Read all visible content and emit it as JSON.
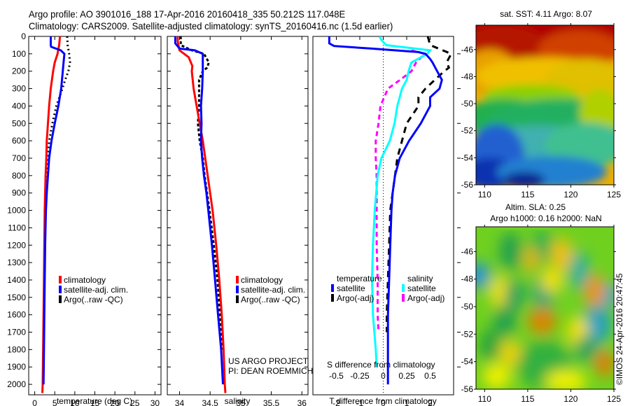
{
  "header": {
    "line1": "Argo profile: AO 3901016_188 17-Apr-2016 20160418_335 50.212S 117.048E",
    "line2": "Climatology: CARS2009. Satellite-adjusted climatology: synTS_20160416.nc (1.5d earlier)"
  },
  "colors": {
    "climatology": "#ff0000",
    "satellite": "#0000ff",
    "argo": "#000000",
    "salinity_satellite": "#00ffff",
    "salinity_argo": "#ff00ff"
  },
  "credits": {
    "project": "US ARGO PROJECT",
    "pi": "PI: DEAN ROEMMICH",
    "stamp": "©IMOS 24-Apr-2016 20:47:45"
  },
  "chart_data": [
    {
      "type": "line",
      "name": "temperature-profile",
      "xlabel": "temperature (deg C)",
      "ylabel": "",
      "xlim": [
        -1.5,
        31.5
      ],
      "ylim": [
        2060,
        0
      ],
      "xticks": [
        0,
        5,
        10,
        15,
        20,
        25,
        30
      ],
      "yticks": [
        0,
        100,
        200,
        300,
        400,
        500,
        600,
        700,
        800,
        900,
        1000,
        1100,
        1200,
        1300,
        1400,
        1500,
        1600,
        1700,
        1800,
        1900,
        2000
      ],
      "legend": [
        "climatology",
        "satellite-adj. clim.",
        "Argo(..raw -QC)"
      ],
      "legend_placement": "lower-middle",
      "series": [
        {
          "name": "climatology",
          "depth": [
            0,
            50,
            100,
            150,
            200,
            300,
            400,
            500,
            600,
            700,
            800,
            900,
            1000,
            1200,
            1400,
            1600,
            1800,
            2000,
            2050
          ],
          "values": [
            6.3,
            6.1,
            5.7,
            5.0,
            4.6,
            4.0,
            3.6,
            3.3,
            3.0,
            2.9,
            2.7,
            2.6,
            2.5,
            2.4,
            2.3,
            2.2,
            2.1,
            2.0,
            1.9
          ]
        },
        {
          "name": "satellite-adj. clim.",
          "depth": [
            0,
            50,
            60,
            80,
            100,
            150,
            200,
            300,
            400,
            500,
            600,
            700,
            800,
            900,
            1000,
            1200,
            1400,
            1600,
            1800,
            2000
          ],
          "values": [
            4.0,
            4.0,
            4.1,
            6.5,
            7.4,
            7.2,
            7.0,
            6.6,
            5.9,
            5.0,
            4.2,
            3.6,
            3.3,
            3.0,
            2.8,
            2.6,
            2.5,
            2.4,
            2.3,
            2.2
          ]
        },
        {
          "name": "Argo(..raw -QC)",
          "depth": [
            0,
            50,
            100,
            150,
            200,
            250,
            300,
            400,
            500,
            600,
            700,
            800,
            900,
            1000,
            1200,
            1400,
            1600,
            1700
          ],
          "values": [
            8.1,
            8.2,
            8.6,
            8.8,
            8.4,
            7.6,
            6.9,
            5.4,
            4.4,
            3.6,
            3.3,
            3.0,
            2.8,
            2.7,
            2.5,
            2.4,
            2.3,
            2.3
          ]
        }
      ]
    },
    {
      "type": "line",
      "name": "salinity-profile",
      "xlabel": "salinity",
      "xlim": [
        33.8,
        36.1
      ],
      "ylim": [
        2060,
        0
      ],
      "xticks": [
        34,
        34.5,
        35,
        35.5,
        36
      ],
      "xticklabels": [
        "34",
        "34.5",
        "35",
        "35.5",
        "36"
      ],
      "legend": [
        "climatology",
        "satellite-adj. clim.",
        "Argo(..raw -QC)"
      ],
      "legend_placement": "lower-right",
      "series": [
        {
          "name": "climatology",
          "depth": [
            0,
            30,
            80,
            120,
            170,
            200,
            300,
            400,
            500,
            600,
            700,
            800,
            900,
            1000,
            1200,
            1400,
            1600,
            1800,
            2000,
            2050
          ],
          "values": [
            33.97,
            33.97,
            34.0,
            34.15,
            34.21,
            34.2,
            34.23,
            34.28,
            34.33,
            34.38,
            34.42,
            34.46,
            34.5,
            34.54,
            34.6,
            34.65,
            34.69,
            34.72,
            34.74,
            34.75
          ]
        },
        {
          "name": "satellite-adj. clim.",
          "depth": [
            0,
            40,
            70,
            80,
            100,
            200,
            300,
            400,
            500,
            600,
            700,
            800,
            900,
            1000,
            1200,
            1400,
            1600,
            1800,
            2000
          ],
          "values": [
            33.93,
            33.93,
            34.0,
            34.25,
            34.38,
            34.38,
            34.37,
            34.35,
            34.36,
            34.35,
            34.37,
            34.4,
            34.44,
            34.47,
            34.53,
            34.58,
            34.63,
            34.68,
            34.71
          ]
        },
        {
          "name": "Argo(..raw -QC)",
          "depth": [
            0,
            50,
            80,
            100,
            150,
            180,
            200,
            250,
            300,
            400,
            500,
            600,
            700,
            800,
            900,
            1000,
            1200,
            1400,
            1600,
            1800
          ],
          "values": [
            34.02,
            34.02,
            34.2,
            34.4,
            34.48,
            34.45,
            34.38,
            34.32,
            34.32,
            34.32,
            34.3,
            34.33,
            34.38,
            34.41,
            34.45,
            34.49,
            34.56,
            34.62,
            34.66,
            34.7
          ]
        }
      ]
    },
    {
      "type": "line",
      "name": "difference-profile",
      "xlabel": "T difference from climatology",
      "xlabel2": "S difference from climatology",
      "xlim": [
        -3,
        3
      ],
      "ylim": [
        2060,
        0
      ],
      "xticks": [
        -2,
        -1,
        0,
        1,
        2
      ],
      "xticks2": [
        -0.5,
        -0.25,
        0,
        0.25,
        0.5
      ],
      "xticklabels2": [
        "-0.5",
        "-0.25",
        "0",
        "0.25",
        "0.5"
      ],
      "legend": {
        "temperature_heading": "temperature",
        "salinity_heading": "salinity",
        "entries": [
          "satellite",
          "Argo(-adj)",
          "satellite",
          "Argo(-adj)"
        ]
      },
      "legend_placement": "lower-middle",
      "series": [
        {
          "name": "temperature satellite",
          "depth": [
            0,
            40,
            55,
            70,
            90,
            100,
            130,
            150,
            200,
            250,
            300,
            350,
            400,
            500,
            600,
            700,
            800,
            900,
            1000,
            1200,
            1400,
            1600,
            1800,
            2000
          ],
          "values": [
            -2.3,
            -2.3,
            -2.1,
            -0.5,
            1.5,
            1.8,
            2.0,
            2.1,
            2.3,
            2.5,
            2.4,
            2.0,
            2.0,
            1.6,
            1.1,
            0.7,
            0.5,
            0.4,
            0.35,
            0.3,
            0.25,
            0.2,
            0.2,
            0.2
          ]
        },
        {
          "name": "temperature Argo(-adj)",
          "depth": [
            0,
            50,
            100,
            150,
            180,
            200,
            250,
            300,
            350,
            400,
            500,
            600,
            700,
            800,
            1000,
            1200,
            1400,
            1600,
            1700
          ],
          "values": [
            1.9,
            2.0,
            2.9,
            2.7,
            2.8,
            2.6,
            2.2,
            1.8,
            1.5,
            1.5,
            1.0,
            0.8,
            0.6,
            0.5,
            0.3,
            0.25,
            0.2,
            0.15,
            0.15
          ]
        },
        {
          "name": "salinity satellite",
          "depth": [
            0,
            20,
            50,
            80,
            100,
            150,
            200,
            250,
            300,
            400,
            500,
            600,
            700,
            800,
            1000,
            1200,
            1400,
            1600,
            1800,
            1900
          ],
          "values": [
            -0.04,
            -0.02,
            0.03,
            0.5,
            0.47,
            0.3,
            0.27,
            0.25,
            0.2,
            0.15,
            0.12,
            0.07,
            -0.02,
            -0.06,
            -0.09,
            -0.11,
            -0.12,
            -0.11,
            -0.08,
            -0.07
          ]
        },
        {
          "name": "salinity Argo(-adj)",
          "depth": [
            80,
            100,
            150,
            200,
            250,
            300,
            400,
            500,
            600,
            700,
            800,
            1000,
            1200,
            1400,
            1600,
            1700
          ],
          "values": [
            0.3,
            0.44,
            0.35,
            0.3,
            0.18,
            0.05,
            -0.03,
            -0.05,
            -0.08,
            -0.08,
            -0.07,
            -0.07,
            -0.07,
            -0.06,
            -0.06,
            -0.05
          ]
        }
      ]
    },
    {
      "type": "heatmap",
      "name": "sst-map",
      "title": "sat. SST: 4.11 Argo: 8.07",
      "xlim": [
        109,
        125
      ],
      "ylim": [
        -56,
        -44.2
      ],
      "xticks": [
        110,
        115,
        120,
        125
      ],
      "yticks": [
        -46,
        -48,
        -50,
        -52,
        -54,
        -56
      ]
    },
    {
      "type": "heatmap",
      "name": "sla-map",
      "title": "Altim. SLA: 0.25",
      "subtitle": "Argo h1000: 0.16 h2000: NaN",
      "xlim": [
        109,
        125
      ],
      "ylim": [
        -56,
        -44.2
      ],
      "xticks": [
        110,
        115,
        120,
        125
      ],
      "yticks": [
        -46,
        -48,
        -50,
        -52,
        -54,
        -56
      ]
    }
  ]
}
